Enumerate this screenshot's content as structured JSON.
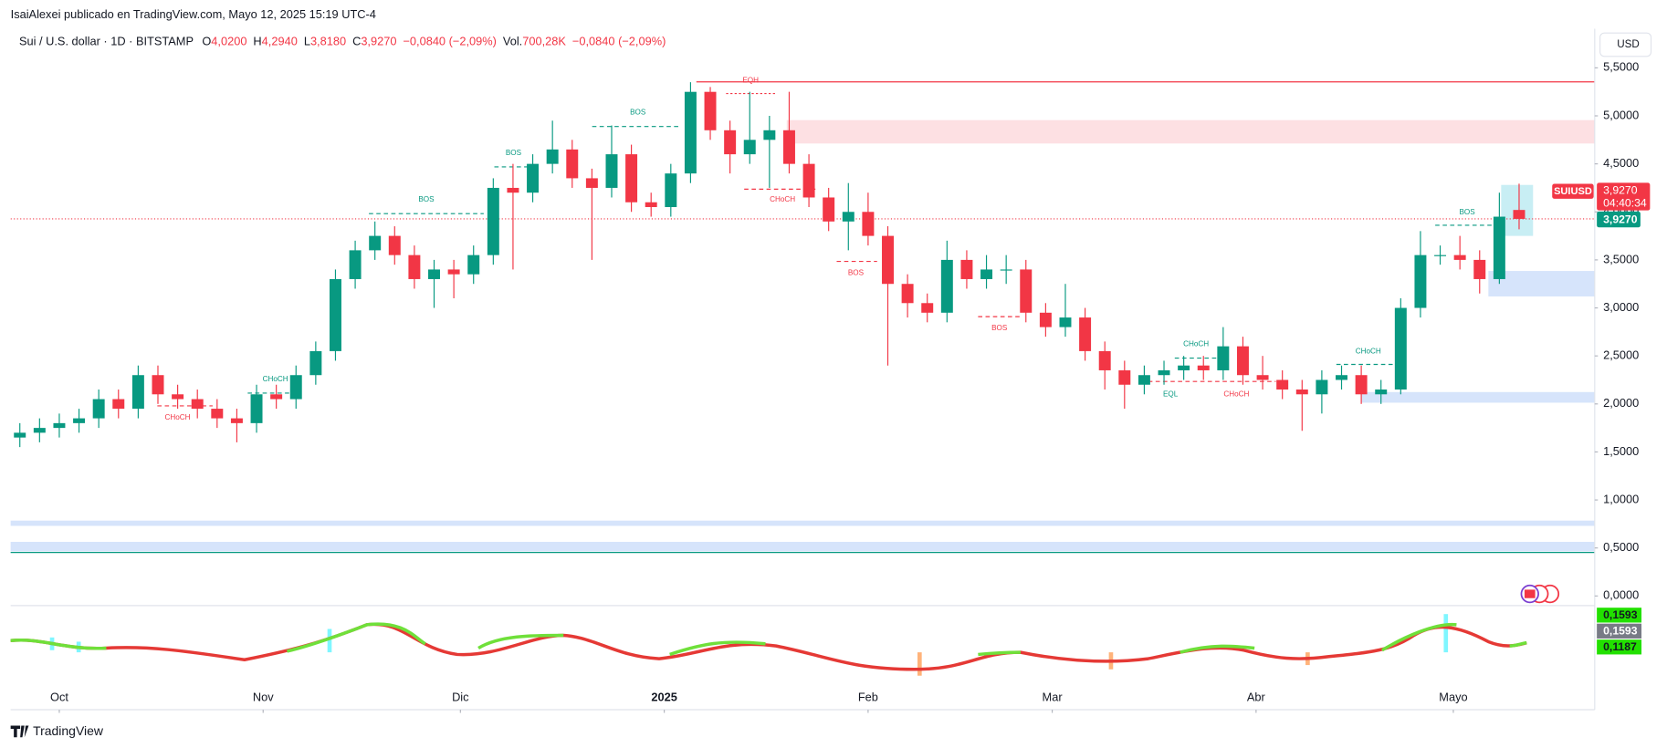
{
  "header": {
    "publisher": "IsaiAlexei publicado en TradingView.com, Mayo 12, 2025 15:19 UTC-4",
    "currency": "USD"
  },
  "legend": {
    "symbol": "Sui / U.S. dollar · 1D · BITSTAMP",
    "o_key": "O",
    "o": "4,0200",
    "h_key": "H",
    "h": "4,2940",
    "l_key": "L",
    "l": "3,8180",
    "c_key": "C",
    "c": "3,9270",
    "change": "−0,0840 (−2,09%)",
    "vol_key": "Vol.",
    "vol": "700,28K",
    "vol_change": "−0,0840 (−2,09%)"
  },
  "price_tag": {
    "symbol": "SUIUSD",
    "price": "3,9270",
    "countdown": "04:40:34",
    "price_line": "3,9270"
  },
  "oscillator_labels": [
    "0,1593",
    "0,1593",
    "0,1187"
  ],
  "footer": "TradingView",
  "chart_data": {
    "type": "candlestick",
    "x": [
      -6,
      -3,
      0,
      3,
      6,
      9,
      12,
      15,
      18,
      21,
      24,
      27,
      30,
      33,
      36,
      39,
      42,
      45,
      48,
      51,
      54,
      57,
      60,
      63,
      66,
      69,
      72,
      75,
      78,
      81,
      84,
      87,
      90,
      93,
      96,
      99,
      102,
      105,
      108,
      111,
      114,
      117,
      120,
      123,
      126,
      129,
      132,
      135,
      138,
      141,
      144,
      147,
      150,
      153,
      156,
      159,
      162,
      165,
      168,
      171,
      174,
      177,
      180,
      183,
      186,
      189,
      192,
      195,
      198,
      201,
      204,
      207,
      210,
      213,
      216,
      219,
      222
    ],
    "open": [
      1.65,
      1.7,
      1.75,
      1.8,
      1.85,
      2.05,
      1.95,
      2.3,
      2.1,
      2.05,
      1.95,
      1.85,
      1.8,
      2.1,
      2.05,
      2.3,
      2.55,
      3.3,
      3.6,
      3.75,
      3.55,
      3.3,
      3.4,
      3.35,
      3.55,
      4.25,
      4.2,
      4.5,
      4.65,
      4.35,
      4.25,
      4.6,
      4.1,
      4.05,
      4.4,
      5.25,
      4.85,
      4.6,
      4.75,
      4.85,
      4.5,
      4.15,
      3.9,
      4.0,
      3.75,
      3.25,
      3.05,
      2.95,
      3.5,
      3.3,
      3.4,
      3.4,
      2.95,
      2.8,
      2.9,
      2.55,
      2.35,
      2.2,
      2.3,
      2.35,
      2.4,
      2.35,
      2.6,
      2.3,
      2.25,
      2.15,
      2.1,
      2.25,
      2.3,
      2.1,
      2.15,
      3.0,
      3.55,
      3.55,
      3.5,
      3.3,
      4.02
    ],
    "high": [
      1.8,
      1.85,
      1.9,
      1.95,
      2.15,
      2.15,
      2.4,
      2.4,
      2.2,
      2.15,
      2.05,
      1.95,
      2.2,
      2.2,
      2.4,
      2.65,
      3.4,
      3.7,
      3.9,
      3.85,
      3.65,
      3.5,
      3.5,
      3.65,
      4.35,
      4.5,
      4.6,
      4.95,
      4.75,
      4.45,
      4.9,
      4.7,
      4.2,
      4.5,
      5.35,
      5.3,
      4.95,
      5.25,
      5.0,
      5.25,
      4.6,
      4.25,
      4.3,
      4.2,
      3.85,
      3.35,
      3.15,
      3.7,
      3.6,
      3.55,
      3.55,
      3.5,
      3.05,
      3.25,
      3.0,
      2.65,
      2.45,
      2.4,
      2.45,
      2.5,
      2.5,
      2.8,
      2.7,
      2.5,
      2.35,
      2.25,
      2.35,
      2.4,
      2.4,
      2.25,
      3.1,
      3.8,
      3.65,
      3.75,
      3.6,
      4.2,
      4.294
    ],
    "low": [
      1.55,
      1.6,
      1.65,
      1.7,
      1.75,
      1.85,
      1.85,
      2.0,
      1.95,
      1.85,
      1.75,
      1.6,
      1.7,
      1.95,
      1.95,
      2.2,
      2.45,
      3.2,
      3.5,
      3.45,
      3.2,
      3.0,
      3.1,
      3.25,
      3.45,
      3.4,
      4.1,
      4.4,
      4.25,
      3.5,
      4.15,
      4.0,
      3.95,
      3.95,
      4.3,
      4.75,
      4.4,
      4.5,
      4.25,
      4.4,
      4.05,
      3.8,
      3.6,
      3.65,
      2.4,
      2.9,
      2.85,
      2.85,
      3.2,
      3.2,
      3.25,
      2.85,
      2.7,
      2.7,
      2.45,
      2.15,
      1.95,
      2.1,
      2.2,
      2.25,
      2.25,
      2.25,
      2.2,
      2.15,
      2.05,
      1.72,
      1.9,
      2.15,
      2.0,
      2.0,
      2.1,
      2.9,
      3.45,
      3.4,
      3.15,
      3.25,
      3.818
    ],
    "close": [
      1.7,
      1.75,
      1.8,
      1.85,
      2.05,
      1.95,
      2.3,
      2.1,
      2.05,
      1.95,
      1.85,
      1.8,
      2.1,
      2.05,
      2.3,
      2.55,
      3.3,
      3.6,
      3.75,
      3.55,
      3.3,
      3.4,
      3.35,
      3.55,
      4.25,
      4.2,
      4.5,
      4.65,
      4.35,
      4.25,
      4.6,
      4.1,
      4.05,
      4.4,
      5.25,
      4.85,
      4.6,
      4.75,
      4.85,
      4.5,
      4.15,
      3.9,
      4.0,
      3.75,
      3.25,
      3.05,
      2.95,
      3.5,
      3.3,
      3.4,
      3.4,
      2.95,
      2.8,
      2.9,
      2.55,
      2.35,
      2.2,
      2.3,
      2.35,
      2.4,
      2.35,
      2.6,
      2.3,
      2.25,
      2.15,
      2.1,
      2.25,
      2.3,
      2.1,
      2.15,
      3.0,
      3.55,
      3.55,
      3.5,
      3.3,
      3.95,
      3.927
    ],
    "up_color": "#089981",
    "down_color": "#f23645",
    "last_price": 3.927,
    "xlim": [
      -7.4,
      233.5
    ],
    "ylim": [
      -0.1,
      5.907
    ],
    "xticks": [
      {
        "value": 0,
        "label": "Oct"
      },
      {
        "value": 31,
        "label": "Nov"
      },
      {
        "value": 61,
        "label": "Dic"
      },
      {
        "value": 92,
        "label": "2025"
      },
      {
        "value": 123,
        "label": "Feb"
      },
      {
        "value": 151,
        "label": "Mar"
      },
      {
        "value": 182,
        "label": "Abr"
      },
      {
        "value": 212,
        "label": "Mayo"
      }
    ],
    "yticks": [
      {
        "value": 0,
        "label": "0,0000"
      },
      {
        "value": 0.5,
        "label": "0,5000"
      },
      {
        "value": 1,
        "label": "1,0000"
      },
      {
        "value": 1.5,
        "label": "1,5000"
      },
      {
        "value": 2,
        "label": "2,0000"
      },
      {
        "value": 2.5,
        "label": "2,5000"
      },
      {
        "value": 3,
        "label": "3,0000"
      },
      {
        "value": 3.5,
        "label": "3,5000"
      },
      {
        "value": 4,
        "label": "4,0000"
      },
      {
        "value": 4.5,
        "label": "4,5000"
      },
      {
        "value": 5,
        "label": "5,0000"
      },
      {
        "value": 5.5,
        "label": "5,5000"
      }
    ],
    "grid": false,
    "annotations": [
      "BOS",
      "BOS",
      "BOS",
      "EQH",
      "CHoCH",
      "BOS",
      "BOS",
      "CHoCH",
      "CHoCH",
      "CHoCH",
      "EQL",
      "CHoCH",
      "CHoCH",
      "BOS"
    ]
  }
}
